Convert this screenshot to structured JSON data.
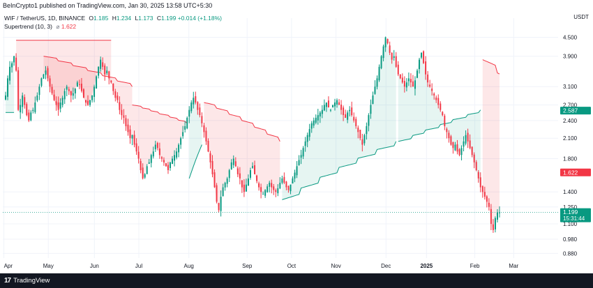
{
  "publisher": "BeInCrypto1 published on TradingView.com, Jan 30, 2025 13:58 UTC+5:30",
  "legend": {
    "symbol": "WIF / TetherUS, 1D, BINANCE",
    "o_label": "O",
    "o": "1.185",
    "h_label": "H",
    "h": "1.234",
    "l_label": "L",
    "l": "1.173",
    "c_label": "C",
    "c": "1.199",
    "change": "+0.014 (+1.18%)",
    "indicator": "Supertrend (10, 3)",
    "indicator_icon": "hidden-eye-icon",
    "indicator_value": "1.622"
  },
  "currency": "USDT",
  "brand": "TradingView",
  "colors": {
    "up": "#089981",
    "down": "#f23645",
    "supertrend_up_fill": "rgba(8,153,129,0.10)",
    "supertrend_down_fill": "rgba(242,54,69,0.12)",
    "grid": "#f0f3fa"
  },
  "chart_data": {
    "type": "candlestick",
    "title": "WIF / TetherUS, 1D, BINANCE",
    "y_scale": "log",
    "ylim": [
      0.85,
      5.2
    ],
    "y_ticks": [
      "4.500",
      "3.900",
      "3.100",
      "2.700",
      "2.400",
      "2.100",
      "1.800",
      "1.400",
      "1.250",
      "1.100",
      "0.980",
      "0.880"
    ],
    "x_ticks": [
      "Apr",
      "May",
      "Jun",
      "Jul",
      "Aug",
      "Sep",
      "Oct",
      "Nov",
      "Dec",
      "2025",
      "Feb",
      "Mar"
    ],
    "price_labels": [
      {
        "name": "supertrend-up-label",
        "value": 2.587,
        "text": "2.587",
        "color": "#089981"
      },
      {
        "name": "supertrend-down-label",
        "value": 1.622,
        "text": "1.622",
        "color": "#f23645"
      },
      {
        "name": "last-price-label",
        "value": 1.199,
        "text": "1.199",
        "sub": "15:31:44",
        "color": "#089981"
      }
    ],
    "last_price": 1.199,
    "closes": [
      2.9,
      3.3,
      3.6,
      3.7,
      3.9,
      3.5,
      2.6,
      2.7,
      2.9,
      2.7,
      2.5,
      2.4,
      2.55,
      2.6,
      2.75,
      2.9,
      3.1,
      3.3,
      3.4,
      3.5,
      3.3,
      3.1,
      2.95,
      2.8,
      2.7,
      2.6,
      2.75,
      2.85,
      3.0,
      3.1,
      3.0,
      2.9,
      2.95,
      3.05,
      3.2,
      3.15,
      3.0,
      2.85,
      2.75,
      2.7,
      2.8,
      2.9,
      3.1,
      3.35,
      3.6,
      3.8,
      3.6,
      3.4,
      3.5,
      3.3,
      3.2,
      3.0,
      2.85,
      2.8,
      2.6,
      2.5,
      2.45,
      2.3,
      2.2,
      2.1,
      2.15,
      2.0,
      1.9,
      1.8,
      1.65,
      1.55,
      1.6,
      1.7,
      1.75,
      1.85,
      1.9,
      2.0,
      1.95,
      1.85,
      1.8,
      1.75,
      1.7,
      1.65,
      1.75,
      1.8,
      1.85,
      1.9,
      2.0,
      2.1,
      2.2,
      2.3,
      2.45,
      2.6,
      2.75,
      2.85,
      2.75,
      2.6,
      2.5,
      2.35,
      2.2,
      2.05,
      1.9,
      1.75,
      1.6,
      1.45,
      1.3,
      1.22,
      1.35,
      1.45,
      1.5,
      1.55,
      1.65,
      1.75,
      1.8,
      1.7,
      1.6,
      1.55,
      1.45,
      1.4,
      1.48,
      1.55,
      1.65,
      1.7,
      1.6,
      1.52,
      1.45,
      1.4,
      1.38,
      1.42,
      1.46,
      1.5,
      1.45,
      1.42,
      1.4,
      1.44,
      1.5,
      1.55,
      1.5,
      1.45,
      1.42,
      1.48,
      1.55,
      1.62,
      1.7,
      1.78,
      1.85,
      1.95,
      2.05,
      2.15,
      2.25,
      2.35,
      2.4,
      2.45,
      2.5,
      2.55,
      2.6,
      2.7,
      2.75,
      2.65,
      2.6,
      2.7,
      2.75,
      2.8,
      2.7,
      2.6,
      2.5,
      2.45,
      2.55,
      2.6,
      2.5,
      2.4,
      2.3,
      2.2,
      2.1,
      2.0,
      2.15,
      2.3,
      2.5,
      2.7,
      2.9,
      3.1,
      3.3,
      3.6,
      3.9,
      4.2,
      4.5,
      4.3,
      4.0,
      3.8,
      3.9,
      3.6,
      3.4,
      3.3,
      3.2,
      3.1,
      3.2,
      3.3,
      3.2,
      3.1,
      3.25,
      3.5,
      3.8,
      4.0,
      3.7,
      3.4,
      3.2,
      3.1,
      3.0,
      2.9,
      2.8,
      2.7,
      2.6,
      2.5,
      2.3,
      2.2,
      2.1,
      2.0,
      1.95,
      2.0,
      1.9,
      1.85,
      1.95,
      2.05,
      2.15,
      2.05,
      1.95,
      1.85,
      1.75,
      1.65,
      1.55,
      1.45,
      1.4,
      1.35,
      1.3,
      1.25,
      1.1,
      1.05,
      1.15,
      1.2,
      1.199
    ],
    "supertrend": [
      {
        "dir": "up",
        "from": 0,
        "to": 4,
        "values": [
          2.55,
          2.55,
          2.55,
          2.55,
          2.55
        ]
      },
      {
        "dir": "down",
        "from": 5,
        "to": 50,
        "start": 4.4,
        "end": 4.4
      },
      {
        "dir": "down",
        "from": 18,
        "to": 60,
        "start": 3.9,
        "end": 3.1
      },
      {
        "dir": "down",
        "from": 60,
        "to": 86,
        "start": 2.7,
        "end": 2.35
      },
      {
        "dir": "up",
        "from": 87,
        "to": 93,
        "start": 1.55,
        "end": 2.0
      },
      {
        "dir": "down",
        "from": 94,
        "to": 130,
        "start": 2.75,
        "end": 2.05
      },
      {
        "dir": "up",
        "from": 131,
        "to": 185,
        "start": 1.32,
        "end": 2.05
      },
      {
        "dir": "up",
        "from": 186,
        "to": 225,
        "start": 2.05,
        "end": 2.6
      },
      {
        "dir": "down",
        "from": 226,
        "to": 268,
        "start": 3.8,
        "end": 1.622
      }
    ]
  }
}
